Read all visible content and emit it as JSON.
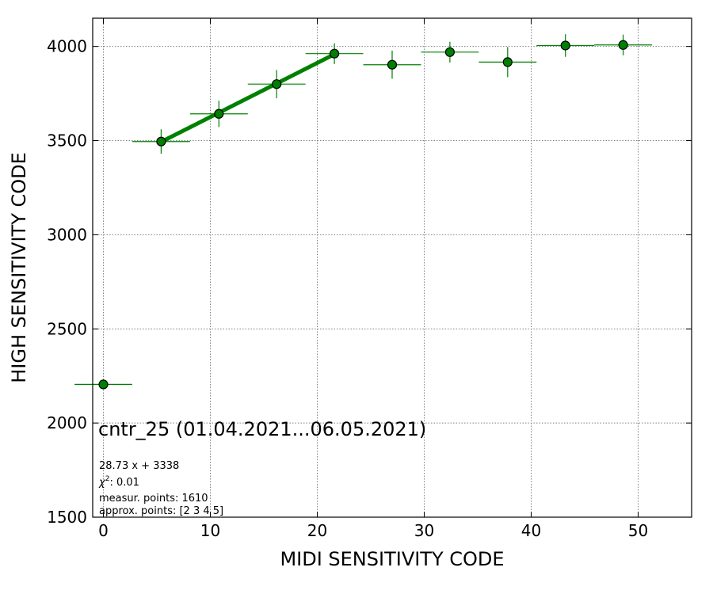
{
  "chart_data": {
    "type": "scatter",
    "xlabel": "MIDI SENSITIVITY CODE",
    "ylabel": "HIGH SENSITIVITY CODE",
    "xlim": [
      -1,
      55
    ],
    "ylim": [
      1500,
      4150
    ],
    "xticks": [
      0,
      10,
      20,
      30,
      40,
      50
    ],
    "yticks": [
      1500,
      2000,
      2500,
      3000,
      3500,
      4000
    ],
    "grid": true,
    "colors": {
      "marker_fill": "#008000",
      "marker_edge": "#000000",
      "errorbar": "#008000",
      "fit_line": "#008000"
    },
    "points": [
      {
        "x": 0.0,
        "y": 2205,
        "xerr": 2.7,
        "yerr": 0
      },
      {
        "x": 5.4,
        "y": 3495,
        "xerr": 2.7,
        "yerr": 65
      },
      {
        "x": 10.8,
        "y": 3642,
        "xerr": 2.7,
        "yerr": 70
      },
      {
        "x": 16.2,
        "y": 3800,
        "xerr": 2.7,
        "yerr": 75
      },
      {
        "x": 21.6,
        "y": 3962,
        "xerr": 2.7,
        "yerr": 55
      },
      {
        "x": 27.0,
        "y": 3903,
        "xerr": 2.7,
        "yerr": 75
      },
      {
        "x": 32.4,
        "y": 3970,
        "xerr": 2.7,
        "yerr": 55
      },
      {
        "x": 37.8,
        "y": 3917,
        "xerr": 2.7,
        "yerr": 80
      },
      {
        "x": 43.2,
        "y": 4005,
        "xerr": 2.7,
        "yerr": 60
      },
      {
        "x": 48.6,
        "y": 4008,
        "xerr": 2.7,
        "yerr": 55
      }
    ],
    "fit": {
      "slope": 28.73,
      "intercept": 3338,
      "x_range": [
        5.4,
        21.6
      ]
    },
    "annotations": {
      "title": "cntr_25 (01.04.2021...06.05.2021)",
      "equation": "28.73 x + 3338",
      "chi2_label": "χ",
      "chi2_sup": "2",
      "chi2_value": ": 0.01",
      "measur_points": "measur. points: 1610",
      "approx_points": "approx. points: [2 3 4 5]"
    }
  }
}
